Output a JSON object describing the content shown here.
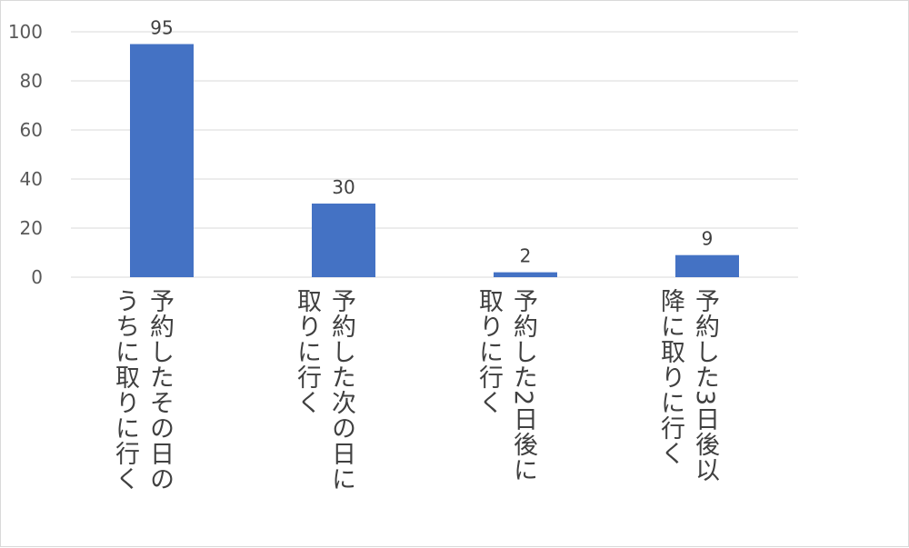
{
  "chart_data": {
    "type": "bar",
    "categories": [
      "予約したその日のうちに取りに行く",
      "予約した次の日に取りに行く",
      "予約した2日後に取りに行く",
      "予約した3日後以降に取りに行く"
    ],
    "category_lines": [
      [
        "予約したその日の",
        "うちに取りに行く"
      ],
      [
        "予約した次の日に",
        "取りに行く"
      ],
      [
        "予約した2日後に",
        "取りに行く"
      ],
      [
        "予約した3日後以",
        "降に取りに行く"
      ]
    ],
    "values": [
      95,
      30,
      2,
      9
    ],
    "data_labels": [
      "95",
      "30",
      "2",
      "9"
    ],
    "yticks": [
      "0",
      "20",
      "40",
      "60",
      "80",
      "100"
    ],
    "ylim": [
      0,
      100
    ],
    "grid": true,
    "bar_color": "#4472c4",
    "grid_color": "#d9d9d9"
  }
}
